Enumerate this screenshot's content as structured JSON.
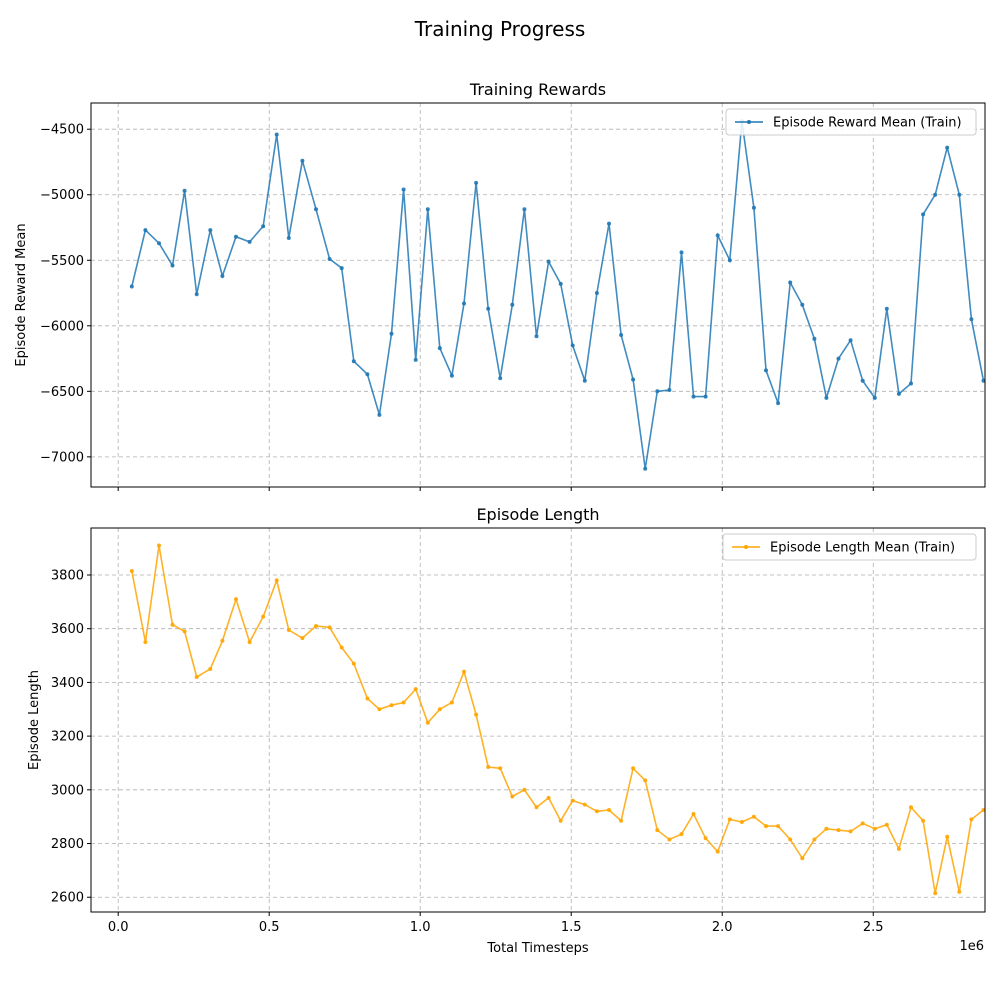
{
  "figure": {
    "suptitle": "Training Progress",
    "offset_text": "1e6"
  },
  "chart_data": [
    {
      "type": "line",
      "title": "Training Rewards",
      "xlabel": "",
      "ylabel": "Episode Reward Mean",
      "xlim": [
        -90000,
        2870000
      ],
      "ylim": [
        -7230,
        -4300
      ],
      "yticks": [
        -7000,
        -6500,
        -6000,
        -5500,
        -5000,
        -4500
      ],
      "ytick_labels": [
        "−7000",
        "−6500",
        "−6000",
        "−5500",
        "−5000",
        "−4500"
      ],
      "xticks": [
        0,
        500000,
        1000000,
        1500000,
        2000000,
        2500000
      ],
      "xtick_labels": [
        "",
        "",
        "",
        "",
        "",
        ""
      ],
      "grid": true,
      "legend": "top-right",
      "series": [
        {
          "name": "Episode Reward Mean (Train)",
          "color": "#1f77b4",
          "x": [
            45000,
            90000,
            135000,
            180000,
            220000,
            260000,
            305000,
            345000,
            390000,
            435000,
            480000,
            525000,
            565000,
            610000,
            655000,
            700000,
            740000,
            780000,
            825000,
            865000,
            905000,
            945000,
            985000,
            1025000,
            1065000,
            1105000,
            1145000,
            1185000,
            1225000,
            1265000,
            1305000,
            1345000,
            1385000,
            1425000,
            1465000,
            1505000,
            1545000,
            1585000,
            1625000,
            1665000,
            1705000,
            1745000,
            1785000,
            1825000,
            1865000,
            1905000,
            1945000,
            1985000,
            2025000,
            2065000,
            2105000,
            2145000,
            2185000,
            2225000,
            2265000,
            2305000,
            2345000,
            2385000,
            2425000,
            2465000,
            2505000,
            2545000,
            2585000,
            2625000,
            2665000,
            2705000,
            2745000,
            2785000,
            2825000,
            2865000
          ],
          "y": [
            -5700,
            -5270,
            -5370,
            -5540,
            -4970,
            -5760,
            -5270,
            -5620,
            -5320,
            -5360,
            -5240,
            -4540,
            -5330,
            -4740,
            -5110,
            -5490,
            -5560,
            -6270,
            -6370,
            -6680,
            -6060,
            -4960,
            -6260,
            -5110,
            -6170,
            -6380,
            -5830,
            -4910,
            -5870,
            -6400,
            -5840,
            -5110,
            -6080,
            -5510,
            -5680,
            -6150,
            -6420,
            -5750,
            -5220,
            -6070,
            -6410,
            -7090,
            -6500,
            -6490,
            -5440,
            -6540,
            -6540,
            -5310,
            -5500,
            -4440,
            -5100,
            -6340,
            -6590,
            -5670,
            -5840,
            -6100,
            -6550,
            -6250,
            -6110,
            -6420,
            -6550,
            -5870,
            -6520,
            -6440,
            -5150,
            -5000,
            -4640,
            -5000,
            -5950,
            -6420
          ]
        }
      ]
    },
    {
      "type": "line",
      "title": "Episode Length",
      "xlabel": "Total Timesteps",
      "ylabel": "Episode Length",
      "xlim": [
        -90000,
        2870000
      ],
      "ylim": [
        2545,
        3975
      ],
      "yticks": [
        2600,
        2800,
        3000,
        3200,
        3400,
        3600,
        3800
      ],
      "ytick_labels": [
        "2600",
        "2800",
        "3000",
        "3200",
        "3400",
        "3600",
        "3800"
      ],
      "xticks": [
        0,
        500000,
        1000000,
        1500000,
        2000000,
        2500000
      ],
      "xtick_labels": [
        "0.0",
        "0.5",
        "1.0",
        "1.5",
        "2.0",
        "2.5"
      ],
      "grid": true,
      "legend": "top-right",
      "series": [
        {
          "name": "Episode Length Mean (Train)",
          "color": "#ffa500",
          "x": [
            45000,
            90000,
            135000,
            180000,
            220000,
            260000,
            305000,
            345000,
            390000,
            435000,
            480000,
            525000,
            565000,
            610000,
            655000,
            700000,
            740000,
            780000,
            825000,
            865000,
            905000,
            945000,
            985000,
            1025000,
            1065000,
            1105000,
            1145000,
            1185000,
            1225000,
            1265000,
            1305000,
            1345000,
            1385000,
            1425000,
            1465000,
            1505000,
            1545000,
            1585000,
            1625000,
            1665000,
            1705000,
            1745000,
            1785000,
            1825000,
            1865000,
            1905000,
            1945000,
            1985000,
            2025000,
            2065000,
            2105000,
            2145000,
            2185000,
            2225000,
            2265000,
            2305000,
            2345000,
            2385000,
            2425000,
            2465000,
            2505000,
            2545000,
            2585000,
            2625000,
            2665000,
            2705000,
            2745000,
            2785000,
            2825000,
            2865000
          ],
          "y": [
            3815,
            3550,
            3910,
            3615,
            3590,
            3420,
            3450,
            3555,
            3710,
            3550,
            3645,
            3780,
            3595,
            3565,
            3610,
            3605,
            3530,
            3470,
            3340,
            3300,
            3315,
            3325,
            3375,
            3250,
            3300,
            3325,
            3440,
            3280,
            3085,
            3080,
            2975,
            3000,
            2935,
            2970,
            2885,
            2960,
            2945,
            2920,
            2925,
            2885,
            3080,
            3035,
            2850,
            2815,
            2835,
            2910,
            2820,
            2770,
            2890,
            2880,
            2900,
            2865,
            2865,
            2815,
            2745,
            2815,
            2855,
            2850,
            2845,
            2875,
            2855,
            2870,
            2780,
            2935,
            2885,
            2615,
            2825,
            2620,
            2890,
            2925
          ]
        }
      ]
    }
  ]
}
